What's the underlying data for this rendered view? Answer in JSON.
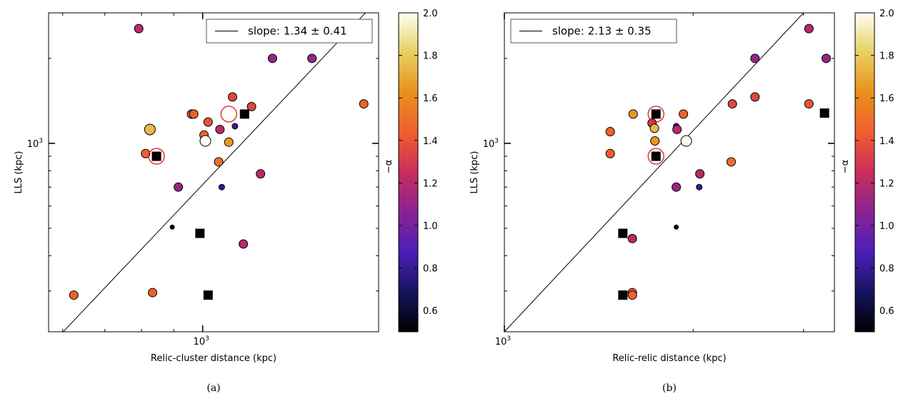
{
  "chart_data": [
    {
      "type": "scatter",
      "caption": "(a)",
      "xlabel": "Relic-cluster distance (kpc)",
      "ylabel": "LLS (kpc)",
      "x_tick_label": "10",
      "x_tick_exp": "3",
      "y_tick_label": "10",
      "y_tick_exp": "3",
      "xscale": "log",
      "yscale": "log",
      "xlim": [
        570,
        1900
      ],
      "ylim": [
        215,
        2900
      ],
      "legend": {
        "label": "slope: 1.34 ± 0.41",
        "placement": "top-right"
      },
      "fit_line": {
        "slope": 1.34,
        "x": [
          600,
          1850
        ],
        "y": [
          214,
          3050
        ]
      },
      "colorbar": {
        "label": "−α",
        "range": [
          0.5,
          2.0
        ],
        "ticks": [
          "0.6",
          "0.8",
          "1.0",
          "1.2",
          "1.4",
          "1.6",
          "1.8",
          "2.0"
        ]
      },
      "points": [
        {
          "x": 625,
          "y": 290,
          "alpha": 1.45,
          "size": "medium"
        },
        {
          "x": 792,
          "y": 2550,
          "alpha": 1.2,
          "size": "medium"
        },
        {
          "x": 825,
          "y": 1120,
          "alpha": 1.75,
          "size": "large"
        },
        {
          "x": 812,
          "y": 920,
          "alpha": 1.45,
          "size": "medium"
        },
        {
          "x": 833,
          "y": 296,
          "alpha": 1.45,
          "size": "medium"
        },
        {
          "x": 895,
          "y": 505,
          "alpha": 0.5,
          "size": "tiny"
        },
        {
          "x": 915,
          "y": 700,
          "alpha": 1.1,
          "size": "medium"
        },
        {
          "x": 960,
          "y": 1270,
          "alpha": 1.4,
          "size": "medium"
        },
        {
          "x": 968,
          "y": 1270,
          "alpha": 1.45,
          "size": "medium"
        },
        {
          "x": 1005,
          "y": 1070,
          "alpha": 1.45,
          "size": "medium"
        },
        {
          "x": 1010,
          "y": 1020,
          "alpha": 2.0,
          "size": "large"
        },
        {
          "x": 1020,
          "y": 1190,
          "alpha": 1.4,
          "size": "medium"
        },
        {
          "x": 1065,
          "y": 1120,
          "alpha": 1.2,
          "size": "medium"
        },
        {
          "x": 1060,
          "y": 860,
          "alpha": 1.5,
          "size": "medium"
        },
        {
          "x": 1072,
          "y": 700,
          "alpha": 0.8,
          "size": "small"
        },
        {
          "x": 1100,
          "y": 1010,
          "alpha": 1.65,
          "size": "medium"
        },
        {
          "x": 1115,
          "y": 1460,
          "alpha": 1.35,
          "size": "medium"
        },
        {
          "x": 1125,
          "y": 1150,
          "alpha": 0.8,
          "size": "small"
        },
        {
          "x": 1160,
          "y": 440,
          "alpha": 1.2,
          "size": "medium"
        },
        {
          "x": 1195,
          "y": 1350,
          "alpha": 1.35,
          "size": "medium"
        },
        {
          "x": 1235,
          "y": 780,
          "alpha": 1.2,
          "size": "medium"
        },
        {
          "x": 1290,
          "y": 2000,
          "alpha": 1.1,
          "size": "medium"
        },
        {
          "x": 1490,
          "y": 2000,
          "alpha": 1.1,
          "size": "medium"
        },
        {
          "x": 1800,
          "y": 1380,
          "alpha": 1.45,
          "size": "medium"
        }
      ],
      "squares": [
        {
          "x": 845,
          "y": 900
        },
        {
          "x": 990,
          "y": 480
        },
        {
          "x": 1020,
          "y": 290
        },
        {
          "x": 1165,
          "y": 1270
        }
      ],
      "circled": [
        {
          "x": 845,
          "y": 900
        },
        {
          "x": 1100,
          "y": 1270
        }
      ]
    },
    {
      "type": "scatter",
      "caption": "(b)",
      "xlabel": "Relic-relic distance (kpc)",
      "ylabel": "LLS (kpc)",
      "x_tick_label": "10",
      "x_tick_exp": "3",
      "y_tick_label": "10",
      "y_tick_exp": "3",
      "xscale": "log",
      "yscale": "log",
      "xlim": [
        1000,
        3360
      ],
      "ylim": [
        215,
        2900
      ],
      "legend": {
        "label": "slope: 2.13 ± 0.35",
        "placement": "top-left"
      },
      "fit_line": {
        "slope": 2.13,
        "x": [
          1000,
          3000
        ],
        "y": [
          215,
          2900
        ]
      },
      "colorbar": {
        "label": "−α",
        "range": [
          0.5,
          2.0
        ],
        "ticks": [
          "0.6",
          "0.8",
          "1.0",
          "1.2",
          "1.4",
          "1.6",
          "1.8",
          "2.0"
        ]
      },
      "points": [
        {
          "x": 1475,
          "y": 1100,
          "alpha": 1.45,
          "size": "medium"
        },
        {
          "x": 1475,
          "y": 920,
          "alpha": 1.45,
          "size": "medium"
        },
        {
          "x": 1600,
          "y": 460,
          "alpha": 1.2,
          "size": "medium"
        },
        {
          "x": 1600,
          "y": 296,
          "alpha": 1.45,
          "size": "medium"
        },
        {
          "x": 1600,
          "y": 290,
          "alpha": 1.45,
          "size": "medium"
        },
        {
          "x": 1605,
          "y": 1270,
          "alpha": 1.65,
          "size": "medium"
        },
        {
          "x": 1720,
          "y": 1180,
          "alpha": 1.3,
          "size": "medium"
        },
        {
          "x": 1735,
          "y": 1130,
          "alpha": 1.75,
          "size": "medium"
        },
        {
          "x": 1738,
          "y": 1020,
          "alpha": 1.65,
          "size": "medium"
        },
        {
          "x": 1880,
          "y": 1150,
          "alpha": 0.8,
          "size": "small"
        },
        {
          "x": 1885,
          "y": 1120,
          "alpha": 1.2,
          "size": "medium"
        },
        {
          "x": 1880,
          "y": 700,
          "alpha": 1.1,
          "size": "medium"
        },
        {
          "x": 1880,
          "y": 505,
          "alpha": 0.5,
          "size": "tiny"
        },
        {
          "x": 1930,
          "y": 1270,
          "alpha": 1.45,
          "size": "medium"
        },
        {
          "x": 1950,
          "y": 1020,
          "alpha": 2.0,
          "size": "large"
        },
        {
          "x": 2045,
          "y": 700,
          "alpha": 0.8,
          "size": "small"
        },
        {
          "x": 2050,
          "y": 780,
          "alpha": 1.2,
          "size": "medium"
        },
        {
          "x": 2300,
          "y": 860,
          "alpha": 1.5,
          "size": "medium"
        },
        {
          "x": 2310,
          "y": 1380,
          "alpha": 1.35,
          "size": "medium"
        },
        {
          "x": 2510,
          "y": 1460,
          "alpha": 1.35,
          "size": "medium"
        },
        {
          "x": 2510,
          "y": 2000,
          "alpha": 1.1,
          "size": "medium"
        },
        {
          "x": 3060,
          "y": 1380,
          "alpha": 1.4,
          "size": "medium"
        },
        {
          "x": 3060,
          "y": 2550,
          "alpha": 1.2,
          "size": "medium"
        },
        {
          "x": 3260,
          "y": 2000,
          "alpha": 1.1,
          "size": "medium"
        }
      ],
      "squares": [
        {
          "x": 1545,
          "y": 480
        },
        {
          "x": 1545,
          "y": 290
        },
        {
          "x": 1745,
          "y": 900
        },
        {
          "x": 1745,
          "y": 1270
        },
        {
          "x": 3240,
          "y": 1280
        }
      ],
      "circled": [
        {
          "x": 1745,
          "y": 900
        },
        {
          "x": 1745,
          "y": 1270
        }
      ]
    }
  ]
}
